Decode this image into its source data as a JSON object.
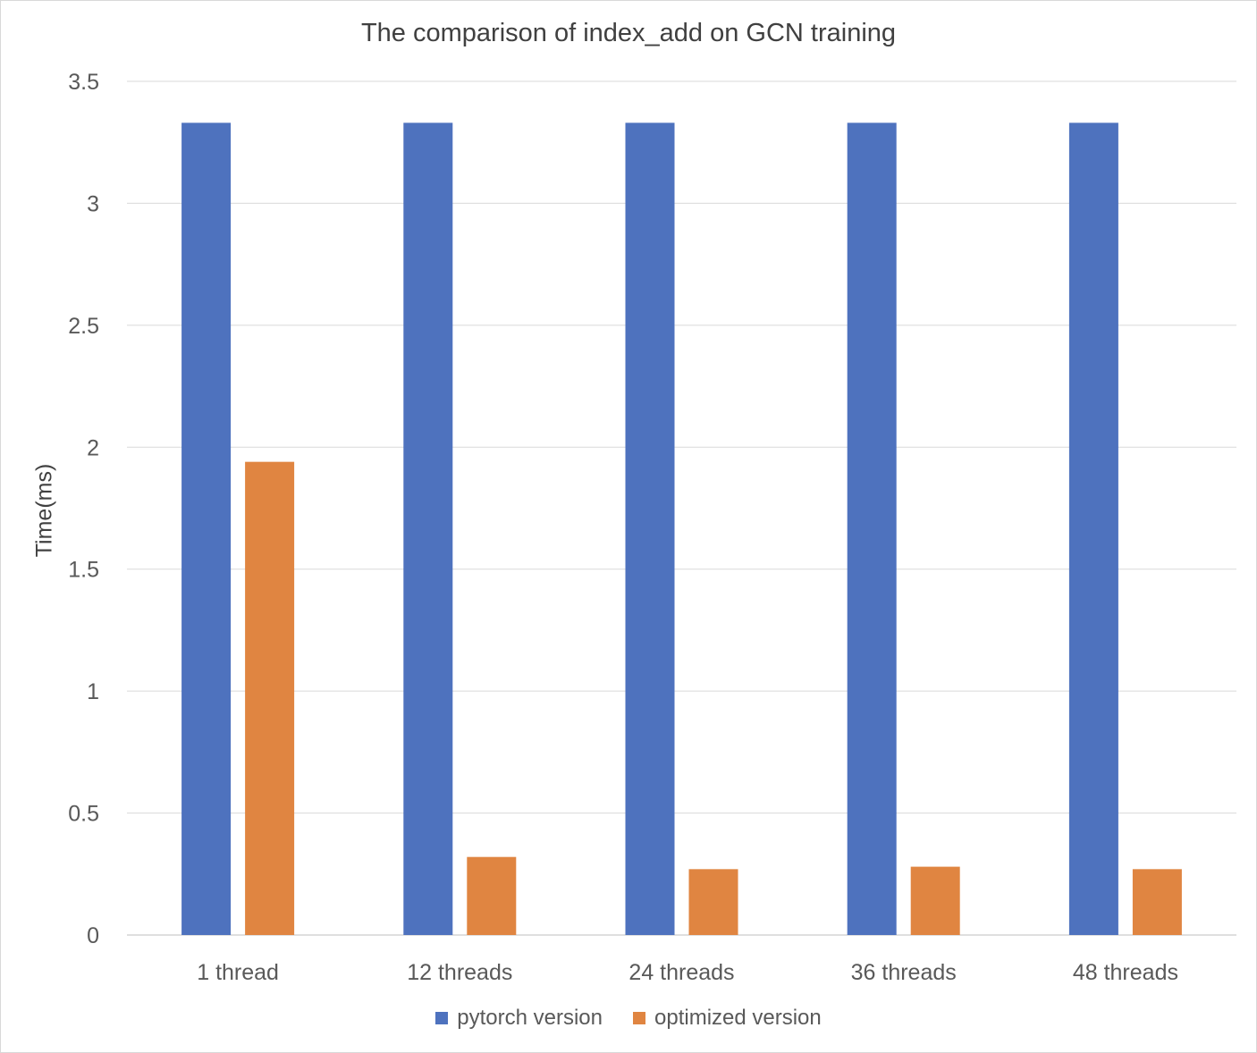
{
  "chart_data": {
    "type": "bar",
    "title": "The comparison of index_add on GCN training",
    "xlabel": "",
    "ylabel": "Time(ms)",
    "ylim": [
      0,
      3.5
    ],
    "yticks": [
      "0",
      "0.5",
      "1",
      "1.5",
      "2",
      "2.5",
      "3",
      "3.5"
    ],
    "categories": [
      "1 thread",
      "12 threads",
      "24 threads",
      "36 threads",
      "48 threads"
    ],
    "series": [
      {
        "name": "pytorch version",
        "color": "#4e72be",
        "values": [
          3.33,
          3.33,
          3.33,
          3.33,
          3.33
        ]
      },
      {
        "name": "optimized version",
        "color": "#e08541",
        "values": [
          1.94,
          0.32,
          0.27,
          0.28,
          0.27
        ]
      }
    ],
    "grid": true,
    "legend_position": "bottom"
  }
}
